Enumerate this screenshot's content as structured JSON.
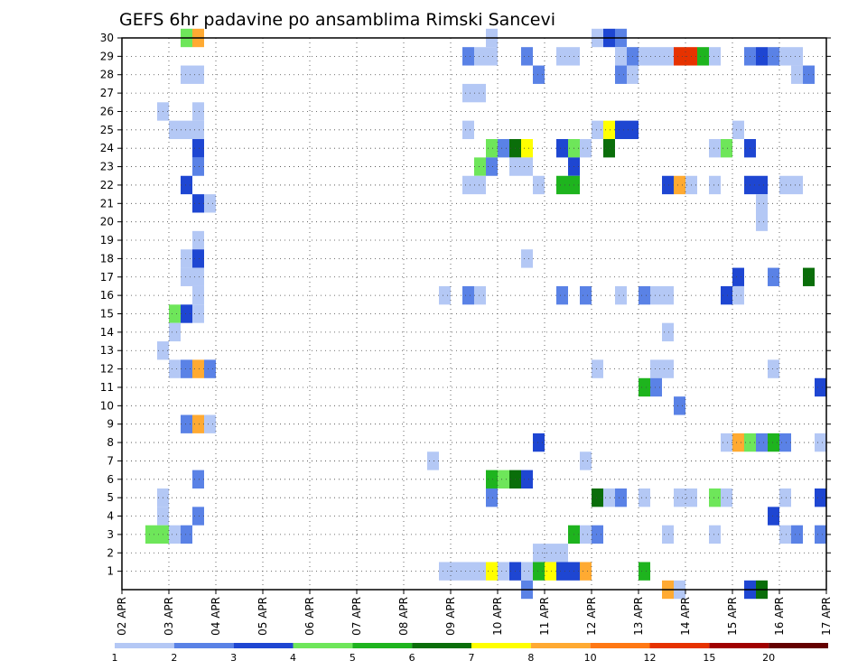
{
  "chart_data": {
    "type": "heatmap",
    "title": "GEFS 6hr padavine po ansamblima Rimski Sancevi",
    "xlabel": "",
    "ylabel": "",
    "x_tick_labels": [
      "02 APR",
      "03 APR",
      "04 APR",
      "05 APR",
      "06 APR",
      "07 APR",
      "08 APR",
      "09 APR",
      "10 APR",
      "11 APR",
      "12 APR",
      "13 APR",
      "14 APR",
      "15 APR",
      "16 APR",
      "17 APR"
    ],
    "y_tick_labels": [
      "1",
      "2",
      "3",
      "4",
      "5",
      "6",
      "7",
      "8",
      "9",
      "10",
      "11",
      "12",
      "13",
      "14",
      "15",
      "16",
      "17",
      "18",
      "19",
      "20",
      "21",
      "22",
      "23",
      "24",
      "25",
      "26",
      "27",
      "28",
      "29",
      "30"
    ],
    "ylim": [
      0,
      30
    ],
    "x_range_days": [
      0,
      15
    ],
    "steps_per_day": 4,
    "grid": true,
    "legend_position": "bottom",
    "legend": {
      "colors": [
        "#b4c8f5",
        "#5a82e6",
        "#1e46d2",
        "#6ee65a",
        "#1eb41e",
        "#0a6e0a",
        "#ffff00",
        "#ffaa32",
        "#ff7814",
        "#e63200",
        "#a00000",
        "#640000"
      ],
      "labels": [
        "1",
        "2",
        "3",
        "4",
        "5",
        "6",
        "7",
        "8",
        "10",
        "12",
        "15",
        "20"
      ]
    },
    "colors": {
      "1": "#b4c8f5",
      "2": "#5a82e6",
      "3": "#1e46d2",
      "4": "#6ee65a",
      "5": "#1eb41e",
      "6": "#0a6e0a",
      "7": "#ffff00",
      "8": "#ffaa32",
      "9": "#ff7814",
      "10": "#e63200"
    },
    "cells": [
      [
        30,
        5,
        5,
        4
      ],
      [
        30,
        6,
        6,
        8
      ],
      [
        30,
        31,
        31,
        1
      ],
      [
        30,
        40,
        40,
        1
      ],
      [
        30,
        41,
        41,
        3
      ],
      [
        30,
        42,
        42,
        2
      ],
      [
        29,
        29,
        29,
        2
      ],
      [
        29,
        30,
        31,
        1
      ],
      [
        29,
        34,
        34,
        2
      ],
      [
        29,
        37,
        38,
        1
      ],
      [
        29,
        42,
        42,
        1
      ],
      [
        29,
        43,
        43,
        2
      ],
      [
        29,
        44,
        44,
        1
      ],
      [
        29,
        45,
        45,
        1
      ],
      [
        29,
        46,
        46,
        1
      ],
      [
        29,
        47,
        48,
        10
      ],
      [
        29,
        49,
        49,
        5
      ],
      [
        29,
        50,
        50,
        1
      ],
      [
        29,
        53,
        53,
        2
      ],
      [
        29,
        54,
        54,
        3
      ],
      [
        29,
        55,
        55,
        2
      ],
      [
        29,
        56,
        57,
        1
      ],
      [
        28,
        5,
        6,
        1
      ],
      [
        28,
        35,
        35,
        2
      ],
      [
        28,
        42,
        42,
        2
      ],
      [
        28,
        43,
        43,
        1
      ],
      [
        28,
        57,
        57,
        1
      ],
      [
        28,
        58,
        58,
        2
      ],
      [
        27,
        29,
        30,
        1
      ],
      [
        26,
        3,
        3,
        1
      ],
      [
        26,
        6,
        6,
        1
      ],
      [
        25,
        4,
        6,
        1
      ],
      [
        25,
        29,
        29,
        1
      ],
      [
        25,
        40,
        40,
        1
      ],
      [
        25,
        41,
        41,
        7
      ],
      [
        25,
        42,
        43,
        3
      ],
      [
        25,
        52,
        52,
        1
      ],
      [
        24,
        6,
        6,
        3
      ],
      [
        24,
        31,
        31,
        4
      ],
      [
        24,
        32,
        32,
        2
      ],
      [
        24,
        33,
        33,
        6
      ],
      [
        24,
        34,
        34,
        7
      ],
      [
        24,
        37,
        37,
        3
      ],
      [
        24,
        38,
        38,
        4
      ],
      [
        24,
        39,
        39,
        1
      ],
      [
        24,
        41,
        41,
        6
      ],
      [
        24,
        50,
        50,
        1
      ],
      [
        24,
        51,
        51,
        4
      ],
      [
        24,
        53,
        53,
        3
      ],
      [
        23,
        6,
        6,
        2
      ],
      [
        23,
        30,
        30,
        4
      ],
      [
        23,
        31,
        31,
        2
      ],
      [
        23,
        33,
        34,
        1
      ],
      [
        23,
        38,
        38,
        3
      ],
      [
        22,
        5,
        5,
        3
      ],
      [
        22,
        29,
        30,
        1
      ],
      [
        22,
        35,
        35,
        1
      ],
      [
        22,
        37,
        38,
        5
      ],
      [
        22,
        46,
        46,
        3
      ],
      [
        22,
        47,
        47,
        8
      ],
      [
        22,
        48,
        48,
        1
      ],
      [
        22,
        50,
        50,
        1
      ],
      [
        22,
        53,
        54,
        3
      ],
      [
        22,
        56,
        57,
        1
      ],
      [
        21,
        6,
        6,
        3
      ],
      [
        21,
        7,
        7,
        1
      ],
      [
        21,
        54,
        54,
        1
      ],
      [
        20,
        54,
        54,
        1
      ],
      [
        19,
        6,
        6,
        1
      ],
      [
        18,
        5,
        5,
        1
      ],
      [
        18,
        6,
        6,
        3
      ],
      [
        18,
        34,
        34,
        1
      ],
      [
        17,
        5,
        6,
        1
      ],
      [
        17,
        52,
        52,
        3
      ],
      [
        17,
        55,
        55,
        2
      ],
      [
        17,
        58,
        58,
        6
      ],
      [
        16,
        6,
        6,
        1
      ],
      [
        16,
        27,
        27,
        1
      ],
      [
        16,
        29,
        29,
        2
      ],
      [
        16,
        30,
        30,
        1
      ],
      [
        16,
        37,
        37,
        2
      ],
      [
        16,
        39,
        39,
        2
      ],
      [
        16,
        42,
        42,
        1
      ],
      [
        16,
        44,
        44,
        2
      ],
      [
        16,
        45,
        46,
        1
      ],
      [
        16,
        51,
        51,
        3
      ],
      [
        16,
        52,
        52,
        1
      ],
      [
        15,
        4,
        4,
        4
      ],
      [
        15,
        5,
        5,
        3
      ],
      [
        15,
        6,
        6,
        1
      ],
      [
        14,
        4,
        4,
        1
      ],
      [
        14,
        46,
        46,
        1
      ],
      [
        13,
        3,
        3,
        1
      ],
      [
        12,
        4,
        4,
        1
      ],
      [
        12,
        5,
        5,
        2
      ],
      [
        12,
        6,
        6,
        8
      ],
      [
        12,
        7,
        7,
        2
      ],
      [
        12,
        40,
        40,
        1
      ],
      [
        12,
        45,
        46,
        1
      ],
      [
        12,
        55,
        55,
        1
      ],
      [
        11,
        44,
        44,
        5
      ],
      [
        11,
        45,
        45,
        2
      ],
      [
        11,
        59,
        59,
        3
      ],
      [
        10,
        47,
        47,
        2
      ],
      [
        9,
        5,
        5,
        2
      ],
      [
        9,
        6,
        6,
        8
      ],
      [
        9,
        7,
        7,
        1
      ],
      [
        8,
        35,
        35,
        3
      ],
      [
        8,
        51,
        51,
        1
      ],
      [
        8,
        52,
        52,
        8
      ],
      [
        8,
        53,
        53,
        4
      ],
      [
        8,
        54,
        54,
        2
      ],
      [
        8,
        55,
        55,
        5
      ],
      [
        8,
        56,
        56,
        2
      ],
      [
        8,
        59,
        59,
        1
      ],
      [
        7,
        26,
        26,
        1
      ],
      [
        7,
        39,
        39,
        1
      ],
      [
        6,
        6,
        6,
        2
      ],
      [
        6,
        31,
        31,
        5
      ],
      [
        6,
        32,
        32,
        4
      ],
      [
        6,
        33,
        33,
        6
      ],
      [
        6,
        34,
        34,
        3
      ],
      [
        5,
        3,
        3,
        1
      ],
      [
        5,
        31,
        31,
        2
      ],
      [
        5,
        40,
        40,
        6
      ],
      [
        5,
        41,
        41,
        1
      ],
      [
        5,
        42,
        42,
        2
      ],
      [
        5,
        44,
        44,
        1
      ],
      [
        5,
        47,
        48,
        1
      ],
      [
        5,
        50,
        50,
        4
      ],
      [
        5,
        51,
        51,
        1
      ],
      [
        5,
        56,
        56,
        1
      ],
      [
        5,
        59,
        59,
        3
      ],
      [
        4,
        3,
        3,
        1
      ],
      [
        4,
        6,
        6,
        2
      ],
      [
        4,
        55,
        55,
        3
      ],
      [
        3,
        2,
        3,
        4
      ],
      [
        3,
        4,
        4,
        1
      ],
      [
        3,
        5,
        5,
        2
      ],
      [
        3,
        38,
        38,
        5
      ],
      [
        3,
        39,
        39,
        1
      ],
      [
        3,
        40,
        40,
        2
      ],
      [
        3,
        46,
        46,
        1
      ],
      [
        3,
        50,
        50,
        1
      ],
      [
        3,
        56,
        56,
        1
      ],
      [
        3,
        57,
        57,
        2
      ],
      [
        3,
        59,
        59,
        2
      ],
      [
        2,
        35,
        37,
        1
      ],
      [
        1,
        27,
        30,
        1
      ],
      [
        1,
        31,
        31,
        7
      ],
      [
        1,
        32,
        32,
        1
      ],
      [
        1,
        33,
        33,
        3
      ],
      [
        1,
        34,
        34,
        1
      ],
      [
        1,
        35,
        35,
        5
      ],
      [
        1,
        36,
        36,
        7
      ],
      [
        1,
        37,
        38,
        3
      ],
      [
        1,
        39,
        39,
        8
      ],
      [
        1,
        44,
        44,
        5
      ],
      [
        0,
        34,
        34,
        2
      ],
      [
        0,
        46,
        46,
        8
      ],
      [
        0,
        47,
        47,
        1
      ],
      [
        0,
        53,
        53,
        3
      ],
      [
        0,
        54,
        54,
        6
      ]
    ]
  }
}
